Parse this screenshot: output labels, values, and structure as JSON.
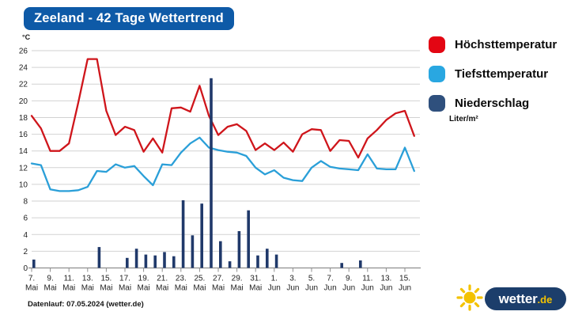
{
  "title": "Zeeland - 42 Tage Wettertrend",
  "colors": {
    "title_bg": "#0e5aa7",
    "grid": "#d2d2d2",
    "axis": "#8f8f8f",
    "text": "#222222",
    "max_temp": "#cf151b",
    "min_temp": "#2a9fd8",
    "precip_bar": "#20396a",
    "logo_navy": "#1c3e6b",
    "logo_yellow": "#f3c200"
  },
  "y_axis": {
    "unit": "°C",
    "ticks": [
      0,
      2,
      4,
      6,
      8,
      10,
      12,
      14,
      16,
      18,
      20,
      22,
      24,
      26
    ]
  },
  "x_axis": {
    "labels": [
      {
        "day": "7.",
        "month": "Mai"
      },
      {
        "day": "9.",
        "month": "Mai"
      },
      {
        "day": "11.",
        "month": "Mai"
      },
      {
        "day": "13.",
        "month": "Mai"
      },
      {
        "day": "15.",
        "month": "Mai"
      },
      {
        "day": "17.",
        "month": "Mai"
      },
      {
        "day": "19.",
        "month": "Mai"
      },
      {
        "day": "21.",
        "month": "Mai"
      },
      {
        "day": "23.",
        "month": "Mai"
      },
      {
        "day": "25.",
        "month": "Mai"
      },
      {
        "day": "27.",
        "month": "Mai"
      },
      {
        "day": "29.",
        "month": "Mai"
      },
      {
        "day": "31.",
        "month": "Mai"
      },
      {
        "day": "1.",
        "month": "Jun"
      },
      {
        "day": "3.",
        "month": "Jun"
      },
      {
        "day": "5.",
        "month": "Jun"
      },
      {
        "day": "7.",
        "month": "Jun"
      },
      {
        "day": "9.",
        "month": "Jun"
      },
      {
        "day": "11.",
        "month": "Jun"
      },
      {
        "day": "13.",
        "month": "Jun"
      },
      {
        "day": "15.",
        "month": "Jun"
      }
    ]
  },
  "legend": [
    {
      "label": "Höchsttemperatur",
      "color": "#e30613"
    },
    {
      "label": "Tiefsttemperatur",
      "color": "#29a7e1"
    },
    {
      "label": "Niederschlag",
      "color": "#2f507d",
      "sub": "Liter/m²"
    }
  ],
  "footer": {
    "datenlauf": "Datenlauf: 07.05.2024 (wetter.de)"
  },
  "logo": {
    "name": "wetter",
    "tld": ".de"
  },
  "chart_data": {
    "type": "line+bar",
    "title": "Zeeland - 42 Tage Wettertrend",
    "xlabel": "",
    "ylabel": "°C",
    "ylim": [
      0,
      26
    ],
    "grid": true,
    "legend_position": "right",
    "categories": [
      "7. Mai",
      "9. Mai",
      "11. Mai",
      "13. Mai",
      "15. Mai",
      "17. Mai",
      "19. Mai",
      "21. Mai",
      "23. Mai",
      "25. Mai",
      "27. Mai",
      "29. Mai",
      "31. Mai",
      "1. Jun",
      "3. Jun",
      "5. Jun",
      "7. Jun",
      "9. Jun",
      "11. Jun",
      "13. Jun",
      "15. Jun"
    ],
    "days_total": 42,
    "series": [
      {
        "name": "Höchsttemperatur",
        "type": "line",
        "unit": "°C",
        "values": [
          18.2,
          16.7,
          14.0,
          14.0,
          14.9,
          19.8,
          25.0,
          25.0,
          18.8,
          15.9,
          16.9,
          16.5,
          13.9,
          15.5,
          13.8,
          19.1,
          19.2,
          18.7,
          21.8,
          18.2,
          15.9,
          16.9,
          17.2,
          16.4,
          14.1,
          14.9,
          14.1,
          15.0,
          13.9,
          16.0,
          16.6,
          16.5,
          14.0,
          15.3,
          15.2,
          13.2,
          15.5,
          16.5,
          17.7,
          18.5,
          18.8,
          15.8
        ]
      },
      {
        "name": "Tiefsttemperatur",
        "type": "line",
        "unit": "°C",
        "values": [
          12.5,
          12.3,
          9.4,
          9.2,
          9.2,
          9.3,
          9.7,
          11.6,
          11.5,
          12.4,
          12.0,
          12.2,
          11.0,
          9.9,
          12.4,
          12.3,
          13.8,
          14.9,
          15.6,
          14.4,
          14.1,
          13.9,
          13.8,
          13.4,
          12.0,
          11.2,
          11.7,
          10.8,
          10.5,
          10.4,
          12.0,
          12.8,
          12.1,
          11.9,
          11.8,
          11.7,
          13.6,
          11.9,
          11.8,
          11.8,
          14.4,
          11.6
        ]
      },
      {
        "name": "Niederschlag",
        "type": "bar",
        "unit": "Liter/m²",
        "values": [
          1.0,
          0,
          0,
          0,
          0,
          0,
          0,
          2.5,
          0,
          0,
          1.2,
          2.3,
          1.6,
          1.5,
          1.9,
          1.4,
          8.1,
          3.9,
          7.7,
          22.7,
          3.2,
          0.8,
          4.4,
          6.9,
          1.5,
          2.3,
          1.6,
          0,
          0,
          0,
          0,
          0,
          0,
          0.6,
          0,
          0.9,
          0,
          0,
          0,
          0,
          0,
          0
        ]
      }
    ]
  }
}
